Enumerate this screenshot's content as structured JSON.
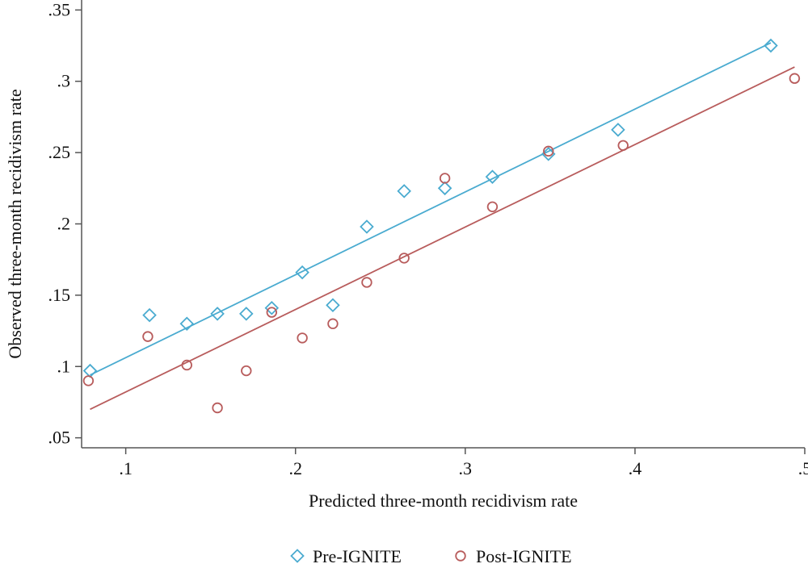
{
  "chart_data": {
    "type": "scatter",
    "xlabel": "Predicted three-month recidivism rate",
    "ylabel": "Observed three-month recidivism rate",
    "xlim": [
      0.074,
      0.5
    ],
    "ylim": [
      0.043,
      0.357
    ],
    "x_ticks": [
      {
        "value": 0.1,
        "label": ".1"
      },
      {
        "value": 0.2,
        "label": ".2"
      },
      {
        "value": 0.3,
        "label": ".3"
      },
      {
        "value": 0.4,
        "label": ".4"
      },
      {
        "value": 0.5,
        "label": ".5"
      }
    ],
    "y_ticks": [
      {
        "value": 0.05,
        "label": ".05"
      },
      {
        "value": 0.1,
        "label": ".1"
      },
      {
        "value": 0.15,
        "label": ".15"
      },
      {
        "value": 0.2,
        "label": ".2"
      },
      {
        "value": 0.25,
        "label": ".25"
      },
      {
        "value": 0.3,
        "label": ".3"
      },
      {
        "value": 0.35,
        "label": ".35"
      }
    ],
    "grid": false,
    "legend_position": "bottom-center",
    "series": [
      {
        "name": "Pre-IGNITE",
        "marker": "diamond",
        "color": "#4aabd0",
        "points": [
          [
            0.079,
            0.097
          ],
          [
            0.114,
            0.136
          ],
          [
            0.136,
            0.13
          ],
          [
            0.154,
            0.137
          ],
          [
            0.171,
            0.137
          ],
          [
            0.186,
            0.141
          ],
          [
            0.204,
            0.166
          ],
          [
            0.222,
            0.143
          ],
          [
            0.242,
            0.198
          ],
          [
            0.264,
            0.223
          ],
          [
            0.288,
            0.225
          ],
          [
            0.316,
            0.233
          ],
          [
            0.349,
            0.249
          ],
          [
            0.39,
            0.266
          ],
          [
            0.48,
            0.325
          ]
        ],
        "fit_line": [
          [
            0.079,
            0.094
          ],
          [
            0.48,
            0.327
          ]
        ]
      },
      {
        "name": "Post-IGNITE",
        "marker": "circle",
        "color": "#b85c5c",
        "points": [
          [
            0.078,
            0.09
          ],
          [
            0.113,
            0.121
          ],
          [
            0.136,
            0.101
          ],
          [
            0.154,
            0.071
          ],
          [
            0.171,
            0.097
          ],
          [
            0.186,
            0.138
          ],
          [
            0.204,
            0.12
          ],
          [
            0.222,
            0.13
          ],
          [
            0.242,
            0.159
          ],
          [
            0.264,
            0.176
          ],
          [
            0.288,
            0.232
          ],
          [
            0.316,
            0.212
          ],
          [
            0.349,
            0.251
          ],
          [
            0.393,
            0.255
          ],
          [
            0.494,
            0.302
          ]
        ],
        "fit_line": [
          [
            0.079,
            0.07
          ],
          [
            0.494,
            0.31
          ]
        ]
      }
    ]
  }
}
